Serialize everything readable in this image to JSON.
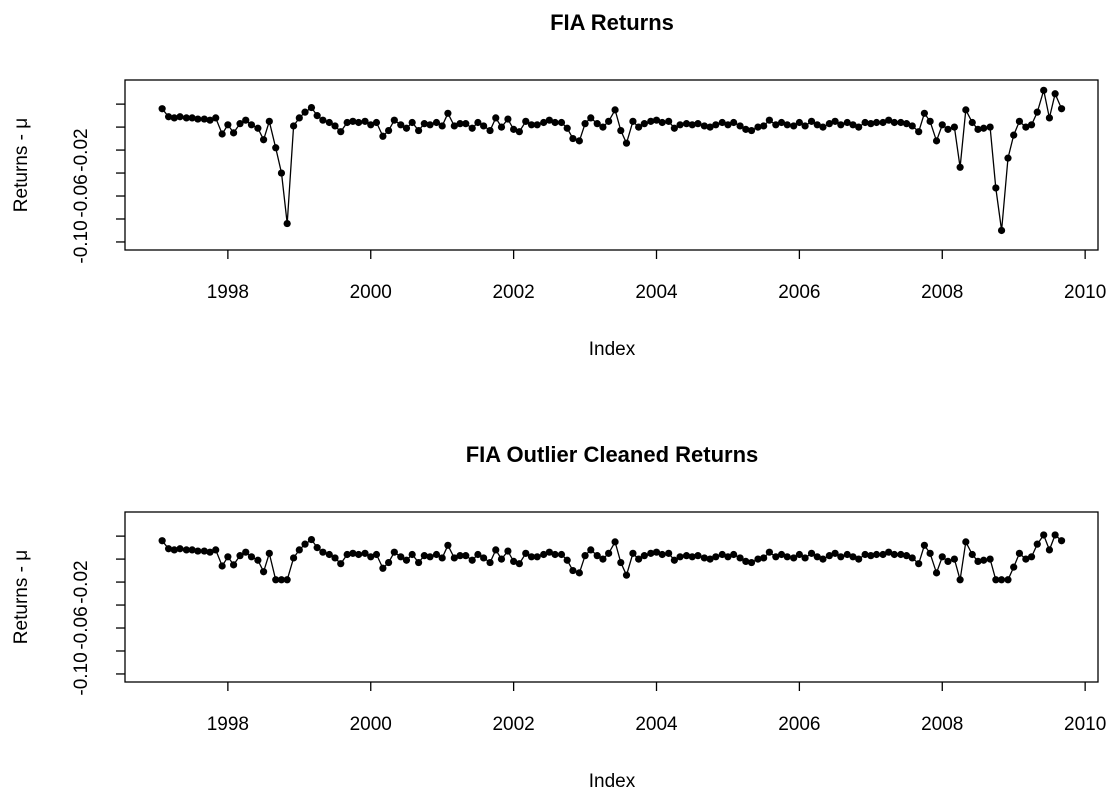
{
  "chart_data": [
    {
      "type": "line",
      "title": "FIA Returns",
      "xlabel": "Index",
      "ylabel": "Returns - μ",
      "color": "#000000",
      "x": [
        1997.08,
        1997.17,
        1997.25,
        1997.33,
        1997.42,
        1997.5,
        1997.58,
        1997.67,
        1997.75,
        1997.83,
        1997.92,
        1998,
        1998.08,
        1998.17,
        1998.25,
        1998.33,
        1998.42,
        1998.5,
        1998.58,
        1998.67,
        1998.75,
        1998.83,
        1998.92,
        1999,
        1999.08,
        1999.17,
        1999.25,
        1999.33,
        1999.42,
        1999.5,
        1999.58,
        1999.67,
        1999.75,
        1999.83,
        1999.92,
        2000,
        2000.08,
        2000.17,
        2000.25,
        2000.33,
        2000.42,
        2000.5,
        2000.58,
        2000.67,
        2000.75,
        2000.83,
        2000.92,
        2001,
        2001.08,
        2001.17,
        2001.25,
        2001.33,
        2001.42,
        2001.5,
        2001.58,
        2001.67,
        2001.75,
        2001.83,
        2001.92,
        2002,
        2002.08,
        2002.17,
        2002.25,
        2002.33,
        2002.42,
        2002.5,
        2002.58,
        2002.67,
        2002.75,
        2002.83,
        2002.92,
        2003,
        2003.08,
        2003.17,
        2003.25,
        2003.33,
        2003.42,
        2003.5,
        2003.58,
        2003.67,
        2003.75,
        2003.83,
        2003.92,
        2004,
        2004.08,
        2004.17,
        2004.25,
        2004.33,
        2004.42,
        2004.5,
        2004.58,
        2004.67,
        2004.75,
        2004.83,
        2004.92,
        2005,
        2005.08,
        2005.17,
        2005.25,
        2005.33,
        2005.42,
        2005.5,
        2005.58,
        2005.67,
        2005.75,
        2005.83,
        2005.92,
        2006,
        2006.08,
        2006.17,
        2006.25,
        2006.33,
        2006.42,
        2006.5,
        2006.58,
        2006.67,
        2006.75,
        2006.83,
        2006.92,
        2007,
        2007.08,
        2007.17,
        2007.25,
        2007.33,
        2007.42,
        2007.5,
        2007.58,
        2007.67,
        2007.75,
        2007.83,
        2007.92,
        2008,
        2008.08,
        2008.17,
        2008.25,
        2008.33,
        2008.42,
        2008.5,
        2008.58,
        2008.67,
        2008.75,
        2008.83,
        2008.92,
        2009,
        2009.08,
        2009.17,
        2009.25,
        2009.33,
        2009.42,
        2009.5,
        2009.58,
        2009.67
      ],
      "values": [
        0.016,
        0.009,
        0.008,
        0.009,
        0.008,
        0.008,
        0.007,
        0.007,
        0.006,
        0.008,
        -0.006,
        0.002,
        -0.005,
        0.003,
        0.006,
        0.002,
        -0.001,
        -0.011,
        0.005,
        -0.018,
        -0.04,
        -0.084,
        0.001,
        0.008,
        0.013,
        0.017,
        0.01,
        0.006,
        0.004,
        0.001,
        -0.004,
        0.004,
        0.005,
        0.004,
        0.005,
        0.002,
        0.004,
        -0.008,
        -0.003,
        0.006,
        0.002,
        -0.001,
        0.004,
        -0.003,
        0.003,
        0.002,
        0.004,
        0.001,
        0.012,
        0.001,
        0.003,
        0.003,
        -0.001,
        0.004,
        0.001,
        -0.003,
        0.008,
        0.0,
        0.007,
        -0.002,
        -0.004,
        0.005,
        0.002,
        0.002,
        0.004,
        0.006,
        0.004,
        0.004,
        -0.001,
        -0.01,
        -0.012,
        0.003,
        0.008,
        0.003,
        0.0,
        0.005,
        0.015,
        -0.003,
        -0.014,
        0.005,
        0.0,
        0.003,
        0.005,
        0.006,
        0.004,
        0.005,
        -0.001,
        0.002,
        0.003,
        0.002,
        0.003,
        0.001,
        0.0,
        0.002,
        0.004,
        0.002,
        0.004,
        0.001,
        -0.002,
        -0.003,
        0.0,
        0.001,
        0.006,
        0.002,
        0.004,
        0.002,
        0.001,
        0.004,
        0.001,
        0.005,
        0.002,
        0.0,
        0.003,
        0.005,
        0.002,
        0.004,
        0.002,
        0.0,
        0.004,
        0.003,
        0.004,
        0.004,
        0.006,
        0.004,
        0.004,
        0.003,
        0.001,
        -0.004,
        0.012,
        0.005,
        -0.012,
        0.002,
        -0.002,
        0.0,
        -0.035,
        0.015,
        0.004,
        -0.002,
        -0.001,
        0.0,
        -0.053,
        -0.09,
        -0.027,
        -0.007,
        0.005,
        0.0,
        0.002,
        0.013,
        0.032,
        0.008,
        0.029,
        0.016
      ],
      "xlim": [
        1996.56,
        2010.18
      ],
      "ylim": [
        -0.107,
        0.041
      ],
      "xticks": [
        1998,
        2000,
        2002,
        2004,
        2006,
        2008,
        2010
      ],
      "yticks": [
        -0.1,
        -0.08,
        -0.06,
        -0.04,
        -0.02,
        0,
        0.02
      ],
      "ytick_labels": [
        {
          "value": -0.1,
          "label": "-0.10"
        },
        {
          "value": -0.06,
          "label": "-0.06"
        },
        {
          "value": -0.02,
          "label": "-0.02"
        }
      ]
    },
    {
      "type": "line",
      "title": "FIA Outlier Cleaned Returns",
      "xlabel": "Index",
      "ylabel": "Returns - μ",
      "color": "#000000",
      "x": [
        1997.08,
        1997.17,
        1997.25,
        1997.33,
        1997.42,
        1997.5,
        1997.58,
        1997.67,
        1997.75,
        1997.83,
        1997.92,
        1998,
        1998.08,
        1998.17,
        1998.25,
        1998.33,
        1998.42,
        1998.5,
        1998.58,
        1998.67,
        1998.75,
        1998.83,
        1998.92,
        1999,
        1999.08,
        1999.17,
        1999.25,
        1999.33,
        1999.42,
        1999.5,
        1999.58,
        1999.67,
        1999.75,
        1999.83,
        1999.92,
        2000,
        2000.08,
        2000.17,
        2000.25,
        2000.33,
        2000.42,
        2000.5,
        2000.58,
        2000.67,
        2000.75,
        2000.83,
        2000.92,
        2001,
        2001.08,
        2001.17,
        2001.25,
        2001.33,
        2001.42,
        2001.5,
        2001.58,
        2001.67,
        2001.75,
        2001.83,
        2001.92,
        2002,
        2002.08,
        2002.17,
        2002.25,
        2002.33,
        2002.42,
        2002.5,
        2002.58,
        2002.67,
        2002.75,
        2002.83,
        2002.92,
        2003,
        2003.08,
        2003.17,
        2003.25,
        2003.33,
        2003.42,
        2003.5,
        2003.58,
        2003.67,
        2003.75,
        2003.83,
        2003.92,
        2004,
        2004.08,
        2004.17,
        2004.25,
        2004.33,
        2004.42,
        2004.5,
        2004.58,
        2004.67,
        2004.75,
        2004.83,
        2004.92,
        2005,
        2005.08,
        2005.17,
        2005.25,
        2005.33,
        2005.42,
        2005.5,
        2005.58,
        2005.67,
        2005.75,
        2005.83,
        2005.92,
        2006,
        2006.08,
        2006.17,
        2006.25,
        2006.33,
        2006.42,
        2006.5,
        2006.58,
        2006.67,
        2006.75,
        2006.83,
        2006.92,
        2007,
        2007.08,
        2007.17,
        2007.25,
        2007.33,
        2007.42,
        2007.5,
        2007.58,
        2007.67,
        2007.75,
        2007.83,
        2007.92,
        2008,
        2008.08,
        2008.17,
        2008.25,
        2008.33,
        2008.42,
        2008.5,
        2008.58,
        2008.67,
        2008.75,
        2008.83,
        2008.92,
        2009,
        2009.08,
        2009.17,
        2009.25,
        2009.33,
        2009.42,
        2009.5,
        2009.58,
        2009.67
      ],
      "values": [
        0.016,
        0.009,
        0.008,
        0.009,
        0.008,
        0.008,
        0.007,
        0.007,
        0.006,
        0.008,
        -0.006,
        0.002,
        -0.005,
        0.003,
        0.006,
        0.002,
        -0.001,
        -0.011,
        0.005,
        -0.018,
        -0.018,
        -0.018,
        0.001,
        0.008,
        0.013,
        0.017,
        0.01,
        0.006,
        0.004,
        0.001,
        -0.004,
        0.004,
        0.005,
        0.004,
        0.005,
        0.002,
        0.004,
        -0.008,
        -0.003,
        0.006,
        0.002,
        -0.001,
        0.004,
        -0.003,
        0.003,
        0.002,
        0.004,
        0.001,
        0.012,
        0.001,
        0.003,
        0.003,
        -0.001,
        0.004,
        0.001,
        -0.003,
        0.008,
        0.0,
        0.007,
        -0.002,
        -0.004,
        0.005,
        0.002,
        0.002,
        0.004,
        0.006,
        0.004,
        0.004,
        -0.001,
        -0.01,
        -0.012,
        0.003,
        0.008,
        0.003,
        0.0,
        0.005,
        0.015,
        -0.003,
        -0.014,
        0.005,
        0.0,
        0.003,
        0.005,
        0.006,
        0.004,
        0.005,
        -0.001,
        0.002,
        0.003,
        0.002,
        0.003,
        0.001,
        0.0,
        0.002,
        0.004,
        0.002,
        0.004,
        0.001,
        -0.002,
        -0.003,
        0.0,
        0.001,
        0.006,
        0.002,
        0.004,
        0.002,
        0.001,
        0.004,
        0.001,
        0.005,
        0.002,
        0.0,
        0.003,
        0.005,
        0.002,
        0.004,
        0.002,
        0.0,
        0.004,
        0.003,
        0.004,
        0.004,
        0.006,
        0.004,
        0.004,
        0.003,
        0.001,
        -0.004,
        0.012,
        0.005,
        -0.012,
        0.002,
        -0.002,
        0.0,
        -0.018,
        0.015,
        0.004,
        -0.002,
        -0.001,
        0.0,
        -0.018,
        -0.018,
        -0.018,
        -0.007,
        0.005,
        0.0,
        0.002,
        0.013,
        0.021,
        0.008,
        0.021,
        0.016
      ],
      "xlim": [
        1996.56,
        2010.18
      ],
      "ylim": [
        -0.107,
        0.041
      ],
      "xticks": [
        1998,
        2000,
        2002,
        2004,
        2006,
        2008,
        2010
      ],
      "yticks": [
        -0.1,
        -0.08,
        -0.06,
        -0.04,
        -0.02,
        0,
        0.02
      ],
      "ytick_labels": [
        {
          "value": -0.1,
          "label": "-0.10"
        },
        {
          "value": -0.06,
          "label": "-0.06"
        },
        {
          "value": -0.02,
          "label": "-0.02"
        }
      ]
    }
  ]
}
